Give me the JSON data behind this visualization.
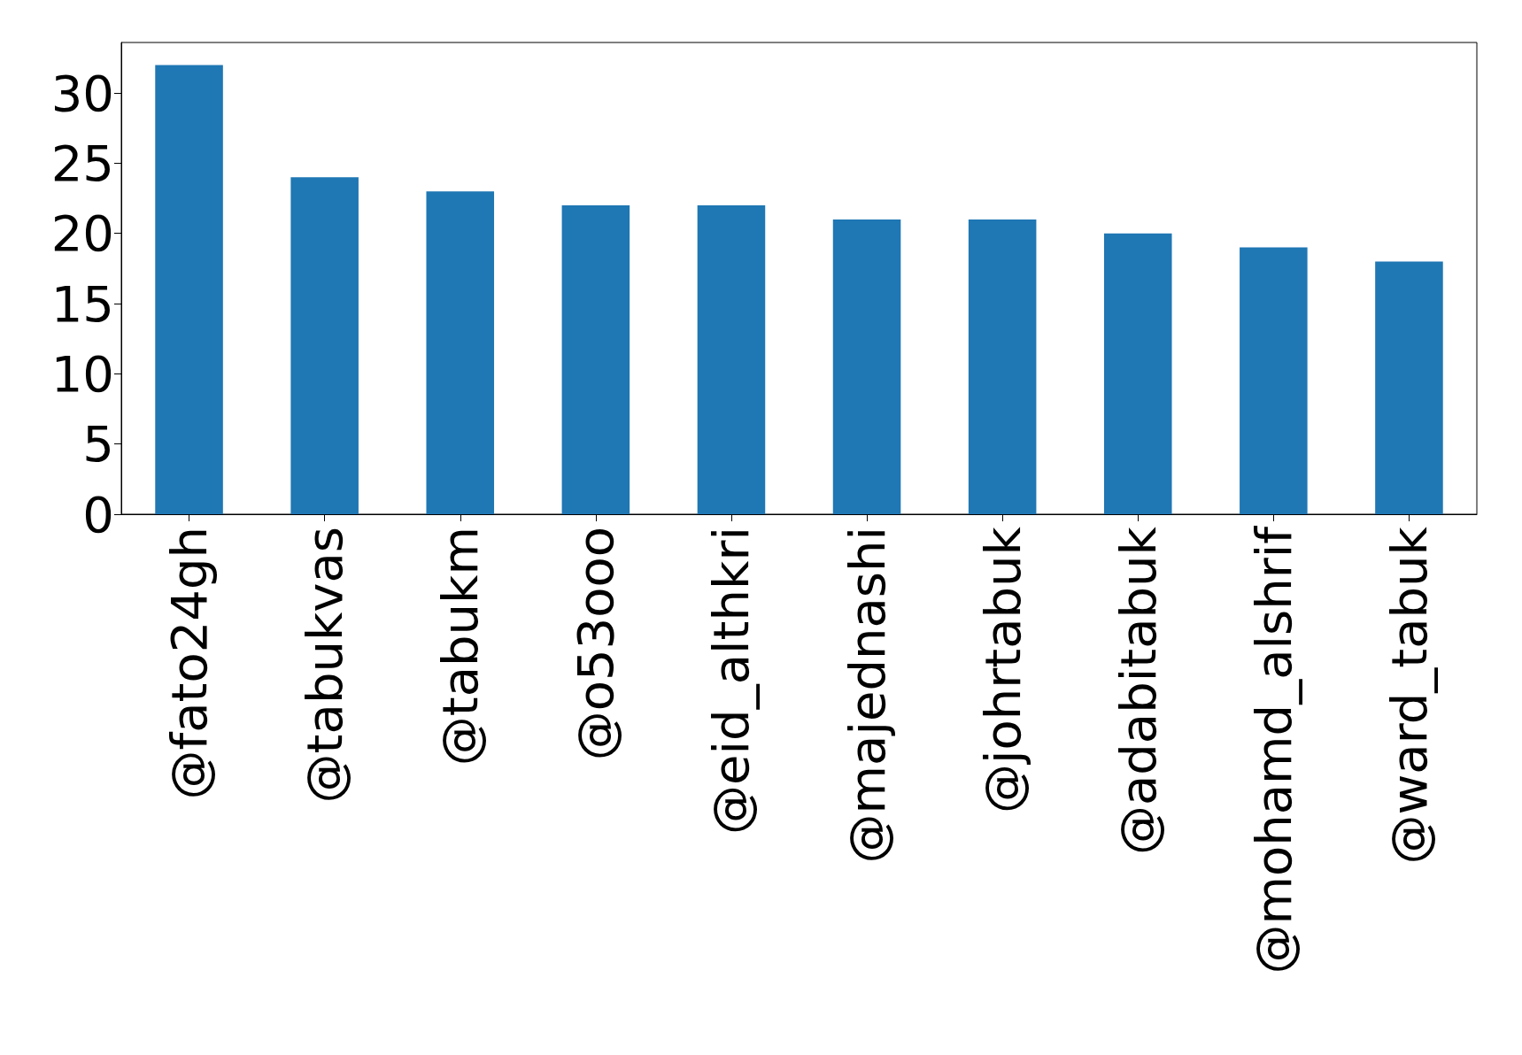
{
  "chart_data": {
    "type": "bar",
    "categories": [
      "@fato24gh",
      "@tabukvas",
      "@tabukm",
      "@o53ooo",
      "@eid_althkri",
      "@majednashi",
      "@johrtabuk",
      "@adabitabuk",
      "@mohamd_alshrif",
      "@ward_tabuk"
    ],
    "values": [
      32,
      24,
      23,
      22,
      22,
      21,
      21,
      20,
      19,
      18
    ],
    "color": "#1f77b4",
    "ylim": [
      0,
      33.6
    ],
    "yticks": [
      0,
      5,
      10,
      15,
      20,
      25,
      30
    ],
    "grid": false
  }
}
